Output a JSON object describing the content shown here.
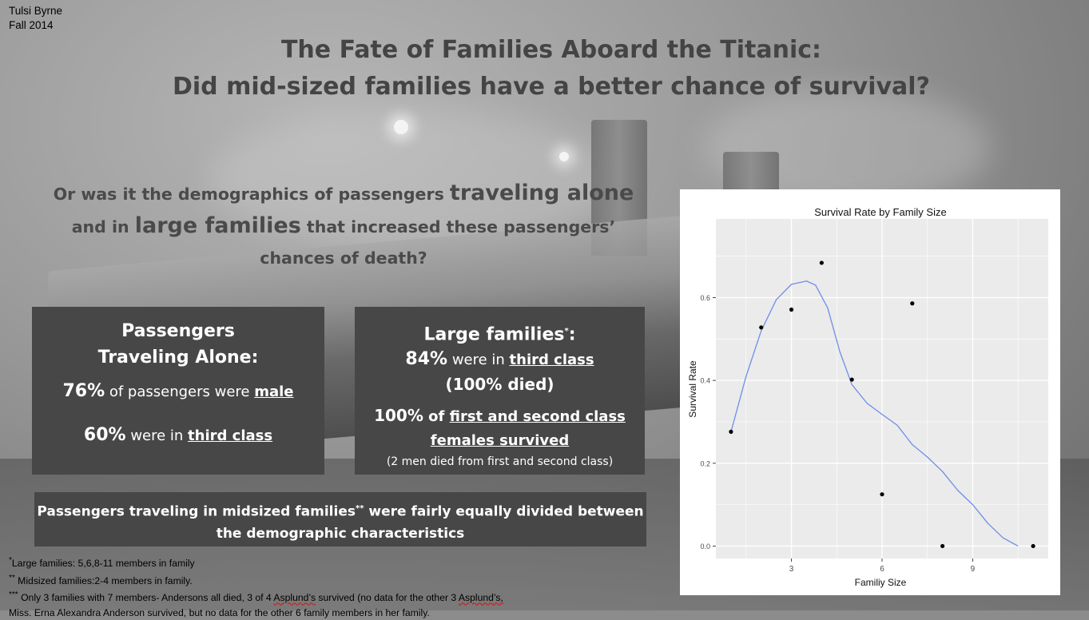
{
  "author": {
    "name": "Tulsi Byrne",
    "term": "Fall 2014"
  },
  "title": {
    "line1": "The Fate of Families Aboard the Titanic:",
    "line2": "Did mid-sized families have a better chance of survival?"
  },
  "question": {
    "p1": "Or was it the demographics of passengers ",
    "b1": "traveling alone",
    "p2": "and in ",
    "b2": "large families",
    "p3": " that increased these passengers’",
    "p4": "chances of death?"
  },
  "box_alone": {
    "heading1": "Passengers",
    "heading2": "Traveling Alone:",
    "stat1_value": "76%",
    "stat1_text": " of passengers were ",
    "stat1_emph": "male",
    "stat2_value": "60%",
    "stat2_text": " were in ",
    "stat2_emph": "third class"
  },
  "box_large": {
    "heading": "Large families",
    "heading_mark": "*",
    "heading_end": ":",
    "stat1_value": "84%",
    "stat1_text": " were in ",
    "stat1_emph": "third class",
    "stat1_note": "(100% died)",
    "stat2_value": "100%",
    "stat2_text": " of ",
    "stat2_emph1": "first and second class",
    "stat2_emph2": "females survived",
    "note": "(2 men died from first and second class)"
  },
  "box_mid": {
    "text1": "Passengers traveling in midsized families",
    "mark": "**",
    "text2": " were fairly equally divided between",
    "text3": "the demographic characteristics"
  },
  "footnotes": {
    "f1_mark": "*",
    "f1": "Large families: 5,6,8-11 members in family",
    "f2_mark": "**",
    "f2": " Midsized families:2-4 members in family.",
    "f3_mark": "***",
    "f3a": "  Only 3 families with 7 members- Andersons all died, 3 of 4 ",
    "f3_wavy1": "Asplund’s",
    "f3b": " survived (no data for the other 3 ",
    "f3_wavy2": "Asplund’s,",
    "f4": " Miss. Erna Alexandra Anderson survived, but no data for the other 6 family members in her family."
  },
  "chart_data": {
    "type": "scatter",
    "title": "Survival Rate by Family Size",
    "xlabel": "Familiy Size",
    "ylabel": "Survival Rate",
    "x_ticks": [
      3,
      6,
      9
    ],
    "y_ticks": [
      0.0,
      0.2,
      0.4,
      0.6
    ],
    "y_tick_labels": [
      "0.0",
      "0.2",
      "0.4",
      "0.6"
    ],
    "xlim": [
      0.5,
      11.5
    ],
    "ylim": [
      -0.03,
      0.79
    ],
    "points": [
      {
        "x": 1,
        "y": 0.276
      },
      {
        "x": 2,
        "y": 0.528
      },
      {
        "x": 3,
        "y": 0.571
      },
      {
        "x": 4,
        "y": 0.684
      },
      {
        "x": 5,
        "y": 0.402
      },
      {
        "x": 6,
        "y": 0.125
      },
      {
        "x": 7,
        "y": 0.586
      },
      {
        "x": 8,
        "y": 0.0
      },
      {
        "x": 11,
        "y": 0.0
      }
    ],
    "smooth_line": [
      [
        1,
        0.276
      ],
      [
        1.5,
        0.41
      ],
      [
        2,
        0.52
      ],
      [
        2.5,
        0.595
      ],
      [
        3,
        0.632
      ],
      [
        3.5,
        0.64
      ],
      [
        3.8,
        0.63
      ],
      [
        4.2,
        0.575
      ],
      [
        4.6,
        0.47
      ],
      [
        5,
        0.39
      ],
      [
        5.5,
        0.345
      ],
      [
        6,
        0.318
      ],
      [
        6.5,
        0.292
      ],
      [
        7,
        0.245
      ],
      [
        7.5,
        0.215
      ],
      [
        8,
        0.18
      ],
      [
        8.5,
        0.135
      ],
      [
        9,
        0.1
      ],
      [
        9.5,
        0.055
      ],
      [
        10,
        0.02
      ],
      [
        10.5,
        0.0
      ]
    ],
    "panel_background": "#ebebeb",
    "gridline_color": "#ffffff",
    "line_color": "#6e8ee8",
    "point_color": "#000000",
    "legend": "none"
  }
}
